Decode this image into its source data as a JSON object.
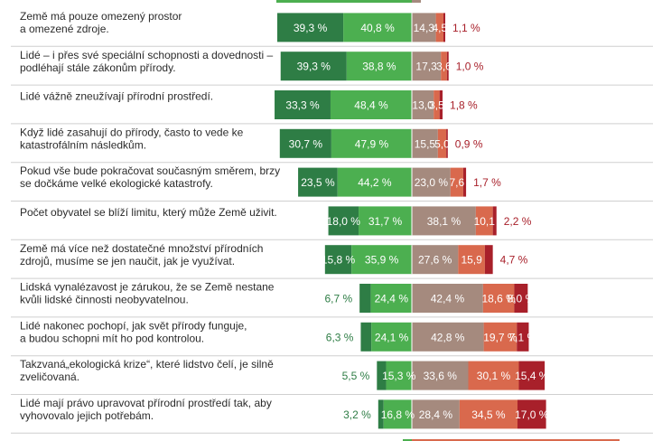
{
  "chart_data": {
    "type": "bar",
    "stacked": true,
    "diverging": true,
    "unit": "%",
    "grid": false,
    "legend": "none",
    "colors": [
      "#2e7d45",
      "#4caf50",
      "#a58a7e",
      "#d9694d",
      "#a8202a"
    ],
    "label_colors": [
      "#ffffff",
      "#ffffff",
      "#ffffff",
      "#ffffff",
      "#ffffff"
    ],
    "outside_label_colors": {
      "left": "#2e7d45",
      "right": "#a8202a"
    },
    "rows": [
      {
        "statement": [
          "Země má pouze omezený prostor",
          "a omezené zdroje."
        ],
        "values": [
          39.3,
          40.8,
          14.3,
          4.5,
          1.1
        ],
        "labels": [
          "39,3 %",
          "40,8 %",
          "14,3",
          "4,5",
          "1,1 %"
        ]
      },
      {
        "statement": [
          "Lidé – i přes své speciální schopnosti a dovednosti –",
          "podléhají stále zákonům přírody."
        ],
        "values": [
          39.3,
          38.8,
          17.3,
          3.6,
          1.0
        ],
        "labels": [
          "39,3 %",
          "38,8 %",
          "17,3",
          "3,6",
          "1,0 %"
        ]
      },
      {
        "statement": [
          "Lidé vážně zneužívají přírodní prostředí."
        ],
        "values": [
          33.3,
          48.4,
          13.0,
          3.5,
          1.8
        ],
        "labels": [
          "33,3 %",
          "48,4 %",
          "13,0",
          "3,5",
          "1,8 %"
        ]
      },
      {
        "statement": [
          "Když lidé zasahují do přírody, často to vede ke",
          "katastrofálním následkům."
        ],
        "values": [
          30.7,
          47.9,
          15.5,
          5.0,
          0.9
        ],
        "labels": [
          "30,7 %",
          "47,9 %",
          "15,5",
          "5,0",
          "0,9 %"
        ]
      },
      {
        "statement": [
          "Pokud vše bude pokračovat současným směrem, brzy",
          "se dočkáme velké ekologické katastrofy."
        ],
        "values": [
          23.5,
          44.2,
          23.0,
          7.6,
          1.7
        ],
        "labels": [
          "23,5 %",
          "44,2 %",
          "23,0 %",
          "7,6",
          "1,7 %"
        ]
      },
      {
        "statement": [
          "Počet obyvatel se blíží limitu, který může Země uživit."
        ],
        "values": [
          18.0,
          31.7,
          38.1,
          10.1,
          2.2
        ],
        "labels": [
          "18,0 %",
          "31,7 %",
          "38,1 %",
          "10,1",
          "2,2 %"
        ]
      },
      {
        "statement": [
          "Země má více než dostatečné množství přírodních",
          "zdrojů, musíme se jen naučit, jak je využívat."
        ],
        "values": [
          15.8,
          35.9,
          27.6,
          15.9,
          4.7
        ],
        "labels": [
          "15,8 %",
          "35,9 %",
          "27,6 %",
          "15,9",
          "4,7 %"
        ]
      },
      {
        "statement": [
          "Lidská vynalézavost je zárukou, že se Země nestane",
          "kvůli lidské činnosti neobyvatelnou."
        ],
        "values": [
          6.7,
          24.4,
          42.4,
          18.6,
          8.0
        ],
        "labels": [
          "6,7 %",
          "24,4 %",
          "42,4 %",
          "18,6 %",
          "8,0 %"
        ]
      },
      {
        "statement": [
          "Lidé nakonec pochopí, jak svět přírody funguje,",
          "a budou schopni mít ho pod kontrolou."
        ],
        "values": [
          6.3,
          24.1,
          42.8,
          19.7,
          7.1
        ],
        "labels": [
          "6,3 %",
          "24,1 %",
          "42,8 %",
          "19,7 %",
          "7,1 %"
        ]
      },
      {
        "statement": [
          "Takzvaná„ekologická krize“, které lidstvo čelí, je silně",
          "zveličovaná."
        ],
        "values": [
          5.5,
          15.3,
          33.6,
          30.1,
          15.4
        ],
        "labels": [
          "5,5 %",
          "15,3 %",
          "33,6 %",
          "30,1 %",
          "15,4 %"
        ]
      },
      {
        "statement": [
          "Lidé mají právo upravovat přírodní prostředí tak, aby",
          "vyhovovalo jejich potřebám."
        ],
        "values": [
          3.2,
          16.8,
          28.4,
          34.5,
          17.0
        ],
        "labels": [
          "3,2 %",
          "16,8 %",
          "28,4 %",
          "34,5 %",
          "17,0 %"
        ]
      }
    ]
  }
}
